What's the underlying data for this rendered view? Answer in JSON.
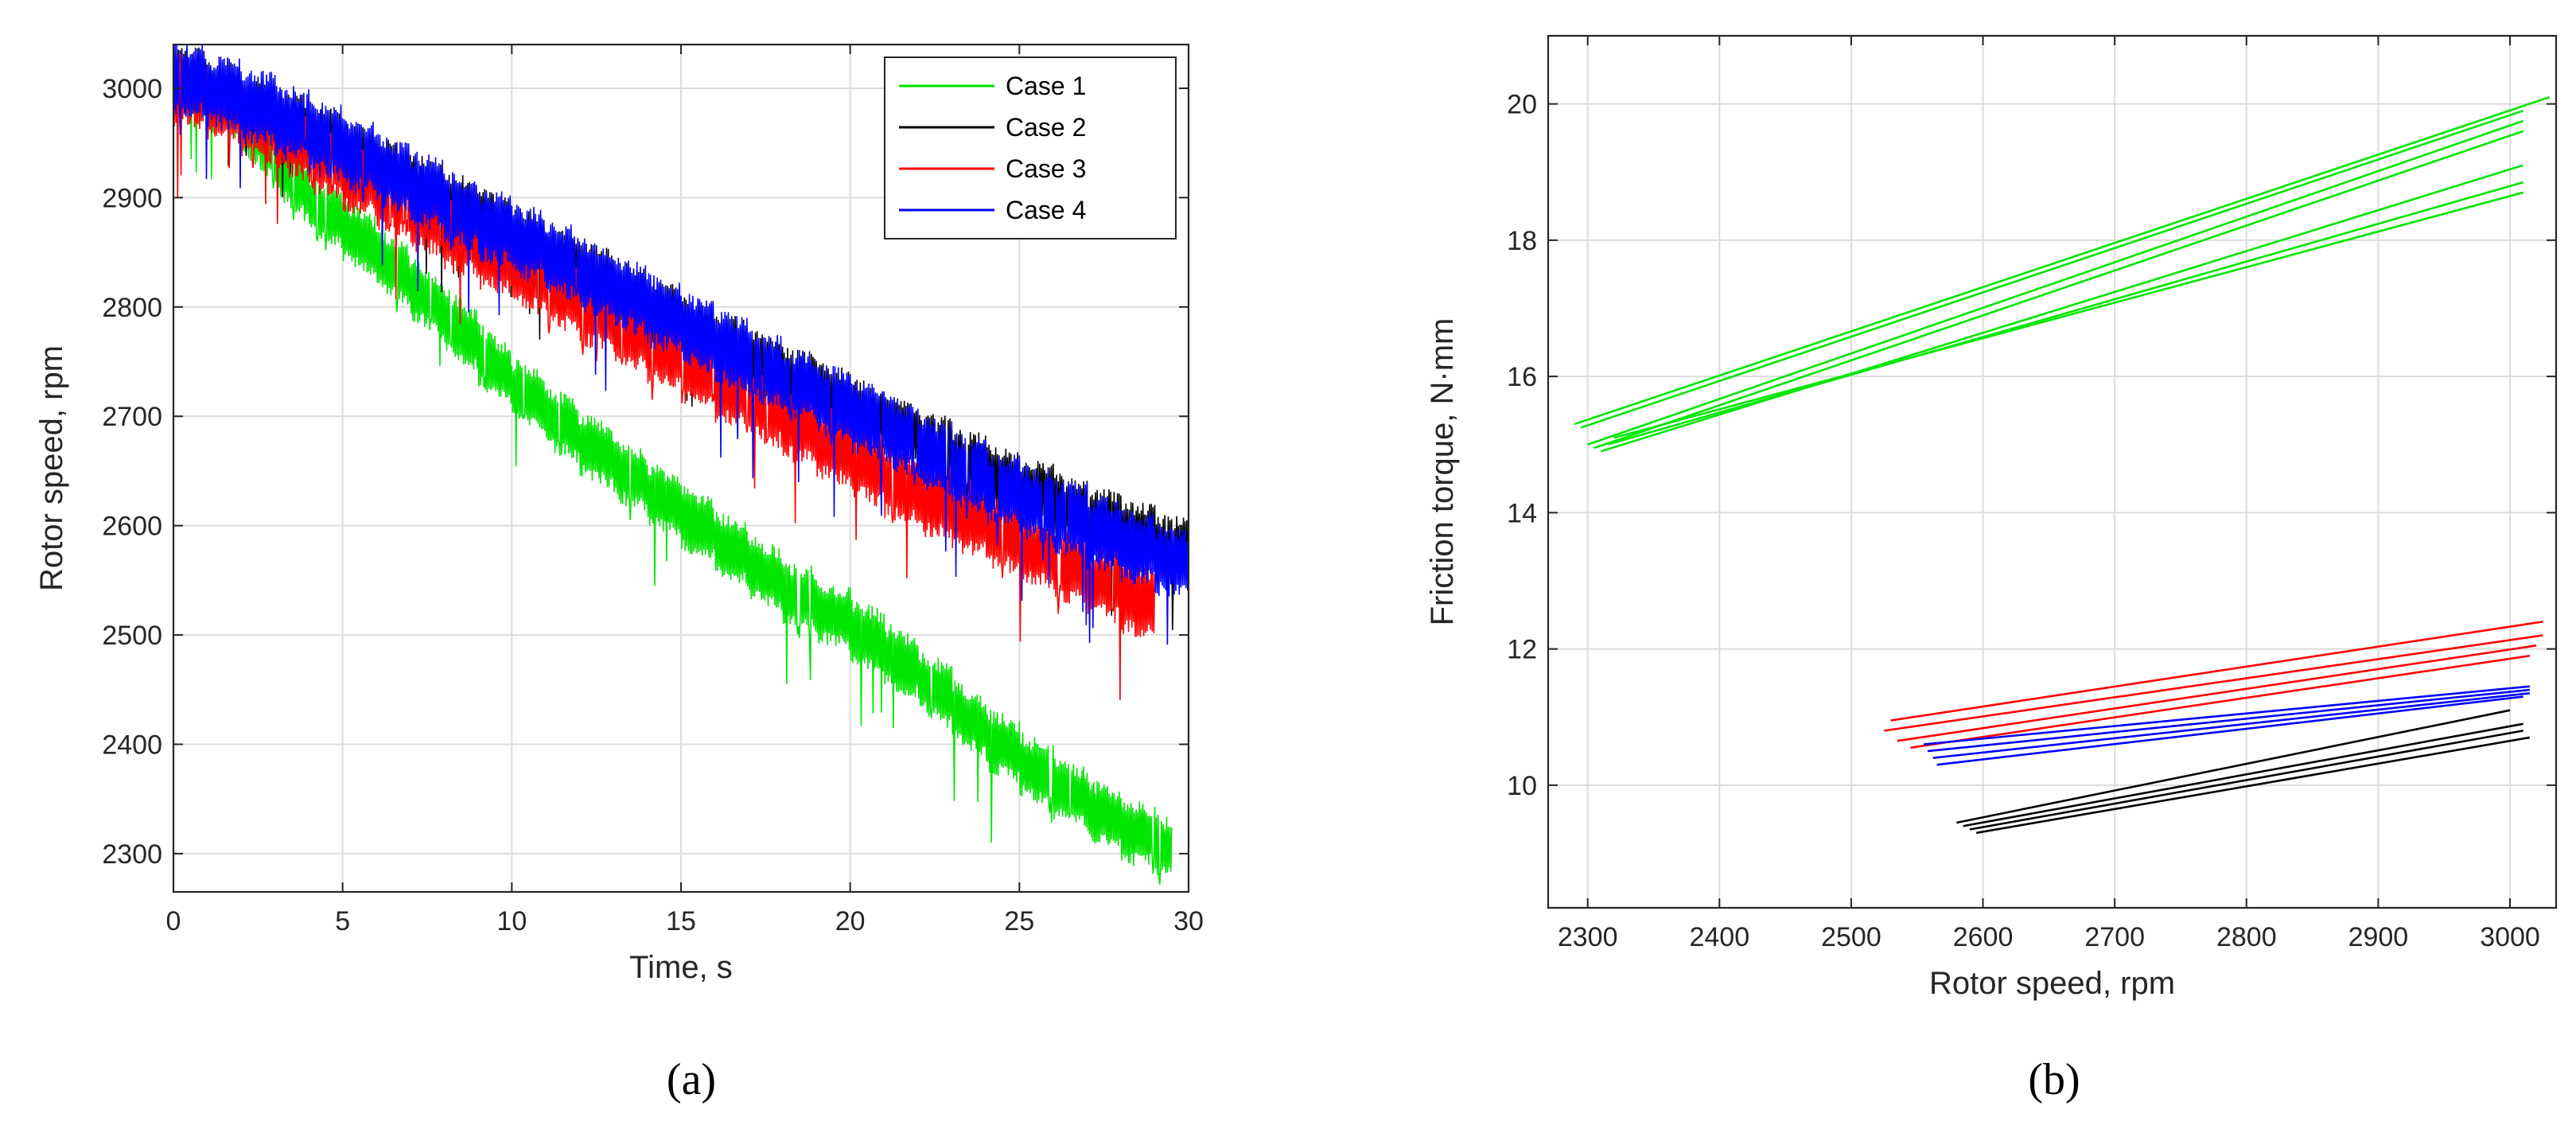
{
  "chart_data": [
    {
      "type": "line",
      "panel": "a",
      "caption": "(a)",
      "xlabel": "Time, s",
      "ylabel": "Rotor speed, rpm",
      "xlim": [
        0,
        30
      ],
      "ylim": [
        2265,
        3040
      ],
      "xticks": [
        0,
        5,
        10,
        15,
        20,
        25,
        30
      ],
      "yticks": [
        2300,
        2400,
        2500,
        2600,
        2700,
        2800,
        2900,
        3000
      ],
      "grid": true,
      "legend_position": "top-right",
      "series": [
        {
          "name": "Case 1",
          "color": "#00e600",
          "band": 30,
          "x": [
            0,
            2,
            4,
            6,
            8,
            10,
            12,
            14,
            16,
            18,
            20,
            22,
            24,
            26,
            28,
            29.5
          ],
          "y": [
            3010,
            2975,
            2900,
            2850,
            2795,
            2730,
            2680,
            2635,
            2590,
            2545,
            2510,
            2465,
            2410,
            2365,
            2325,
            2305
          ]
        },
        {
          "name": "Case 2",
          "color": "#000000",
          "band": 30,
          "x": [
            0,
            3,
            6,
            9,
            12,
            15,
            18,
            21,
            24,
            27,
            30
          ],
          "y": [
            3015,
            2975,
            2930,
            2885,
            2835,
            2785,
            2740,
            2695,
            2650,
            2610,
            2575
          ]
        },
        {
          "name": "Case 3",
          "color": "#ff0000",
          "band": 35,
          "x": [
            0,
            3,
            6,
            9,
            12,
            15,
            18,
            21,
            24,
            27,
            29
          ],
          "y": [
            3005,
            2960,
            2910,
            2855,
            2805,
            2750,
            2700,
            2645,
            2600,
            2555,
            2525
          ]
        },
        {
          "name": "Case 4",
          "color": "#0000ff",
          "band": 35,
          "x": [
            0,
            3,
            6,
            9,
            12,
            15,
            18,
            21,
            24,
            27,
            30
          ],
          "y": [
            3015,
            2975,
            2930,
            2880,
            2835,
            2785,
            2735,
            2690,
            2640,
            2600,
            2560
          ]
        }
      ]
    },
    {
      "type": "line",
      "panel": "b",
      "caption": "(b)",
      "xlabel": "Rotor speed, rpm",
      "ylabel": "Friction torque, N·mm",
      "xlim": [
        2270,
        3035
      ],
      "ylim": [
        8.2,
        21
      ],
      "xticks": [
        2300,
        2400,
        2500,
        2600,
        2700,
        2800,
        2900,
        3000
      ],
      "yticks": [
        10,
        12,
        14,
        16,
        18,
        20
      ],
      "grid": true,
      "series": [
        {
          "name": "Case 1",
          "color": "#00e600",
          "lines": [
            [
              2290,
              15.3,
              3030,
              20.1
            ],
            [
              2295,
              15.25,
              3010,
              19.9
            ],
            [
              2300,
              15.0,
              3010,
              19.75
            ],
            [
              2305,
              14.95,
              3010,
              19.6
            ],
            [
              2310,
              14.9,
              3010,
              19.1
            ],
            [
              2315,
              15.0,
              3010,
              18.85
            ],
            [
              2320,
              15.1,
              3010,
              18.7
            ]
          ]
        },
        {
          "name": "Case 2",
          "color": "#000000",
          "lines": [
            [
              2580,
              9.45,
              3000,
              11.1
            ],
            [
              2585,
              9.4,
              3010,
              10.9
            ],
            [
              2590,
              9.35,
              3010,
              10.8
            ],
            [
              2595,
              9.3,
              3015,
              10.7
            ]
          ]
        },
        {
          "name": "Case 3",
          "color": "#ff0000",
          "lines": [
            [
              2530,
              10.95,
              3025,
              12.4
            ],
            [
              2525,
              10.8,
              3025,
              12.2
            ],
            [
              2535,
              10.65,
              3020,
              12.05
            ],
            [
              2545,
              10.55,
              3015,
              11.9
            ]
          ]
        },
        {
          "name": "Case 4",
          "color": "#0000ff",
          "lines": [
            [
              2555,
              10.6,
              3015,
              11.45
            ],
            [
              2558,
              10.5,
              3015,
              11.4
            ],
            [
              2562,
              10.4,
              3015,
              11.35
            ],
            [
              2565,
              10.3,
              3010,
              11.3
            ]
          ]
        }
      ]
    }
  ]
}
